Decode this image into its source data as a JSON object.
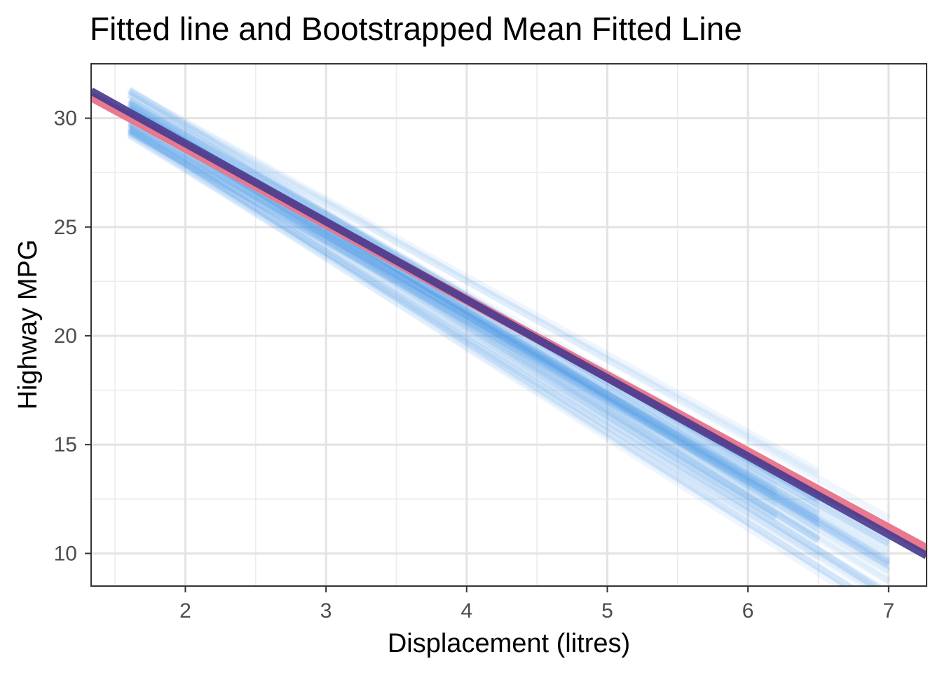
{
  "chart_data": {
    "type": "line",
    "title": "Fitted line and Bootstrapped Mean Fitted Line",
    "xlabel": "Displacement (litres)",
    "ylabel": "Highway MPG",
    "xlim": [
      1.33,
      7.27
    ],
    "ylim": [
      8.5,
      32.5
    ],
    "x_ticks": [
      2,
      3,
      4,
      5,
      6,
      7
    ],
    "y_ticks": [
      10,
      15,
      20,
      25,
      30
    ],
    "grid": true,
    "legend": "none",
    "series": [
      {
        "role": "fitted-line",
        "color": "#e8798e",
        "x": [
          1.33,
          7.27
        ],
        "y": [
          31.0,
          10.2
        ]
      },
      {
        "role": "bootstrapped-mean-fitted-line",
        "color": "#4a3d8f",
        "x": [
          1.33,
          7.27
        ],
        "y": [
          31.25,
          9.9
        ]
      },
      {
        "role": "bootstrap-samples",
        "color": "#4a9fe6",
        "count": 60,
        "x_range_note": "samples span the observed displacement range",
        "x": [
          1.6,
          7.0
        ],
        "y_at_x_min_range": [
          29.2,
          31.4
        ],
        "y_at_x_max_range": [
          9.3,
          12.6
        ]
      }
    ]
  }
}
